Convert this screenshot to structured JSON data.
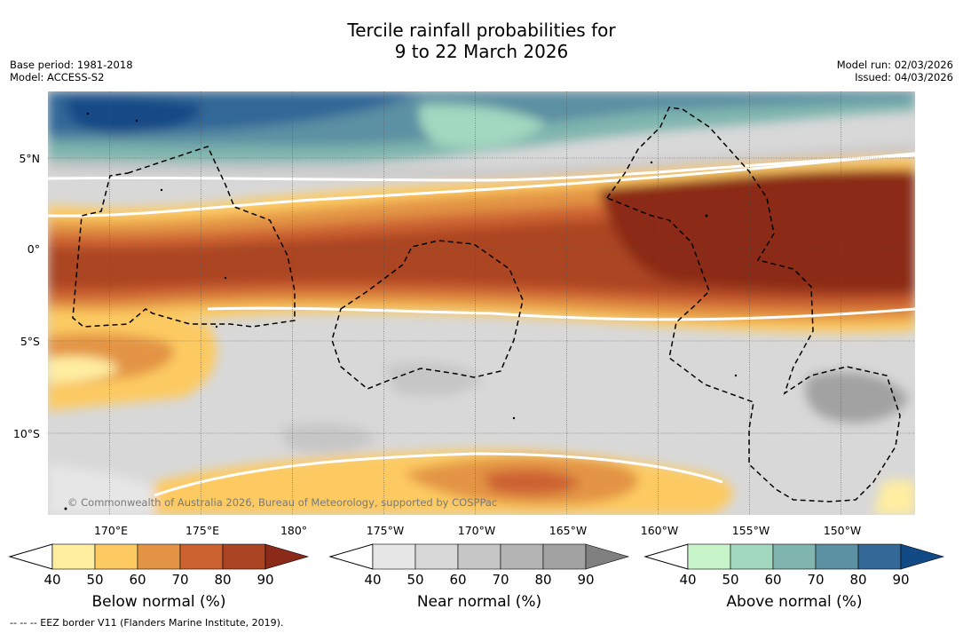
{
  "title": {
    "line1": "Tercile rainfall probabilities for",
    "line2": "9 to 22 March 2026"
  },
  "meta_left": {
    "base_period": "Base period: 1981-2018",
    "model": "Model: ACCESS-S2"
  },
  "meta_right": {
    "model_run": "Model run: 02/03/2026",
    "issued": "Issued: 04/03/2026"
  },
  "map": {
    "lat_labels": [
      "5°N",
      "0°",
      "5°S",
      "10°S"
    ],
    "lon_labels": [
      "170°E",
      "175°E",
      "180°",
      "175°W",
      "170°W",
      "165°W",
      "160°W",
      "155°W",
      "150°W"
    ],
    "attribution": "© Commonwealth of Australia 2026, Bureau of Meteorology, supported by COSPPac"
  },
  "colorbars": [
    {
      "label": "Below normal (%)",
      "ticks": [
        "40",
        "50",
        "60",
        "70",
        "80",
        "90"
      ],
      "colors": [
        "#ffeda0",
        "#fdca62",
        "#e39444",
        "#cc6230",
        "#ab4422",
        "#8b2a18"
      ]
    },
    {
      "label": "Near normal (%)",
      "ticks": [
        "40",
        "50",
        "60",
        "70",
        "80",
        "90"
      ],
      "colors": [
        "#e6e6e6",
        "#d8d8d8",
        "#c6c6c6",
        "#b4b4b4",
        "#a2a2a2",
        "#808080"
      ]
    },
    {
      "label": "Above normal (%)",
      "ticks": [
        "40",
        "50",
        "60",
        "70",
        "80",
        "90"
      ],
      "colors": [
        "#c7f5c9",
        "#a2d8bf",
        "#7fb5ae",
        "#5c90a3",
        "#336897",
        "#124a86"
      ]
    }
  ],
  "footnote": "-- -- -- EEZ border V11 (Flanders Marine Institute, 2019).",
  "colors": {
    "grid": "#555555",
    "eez": "#000000"
  }
}
